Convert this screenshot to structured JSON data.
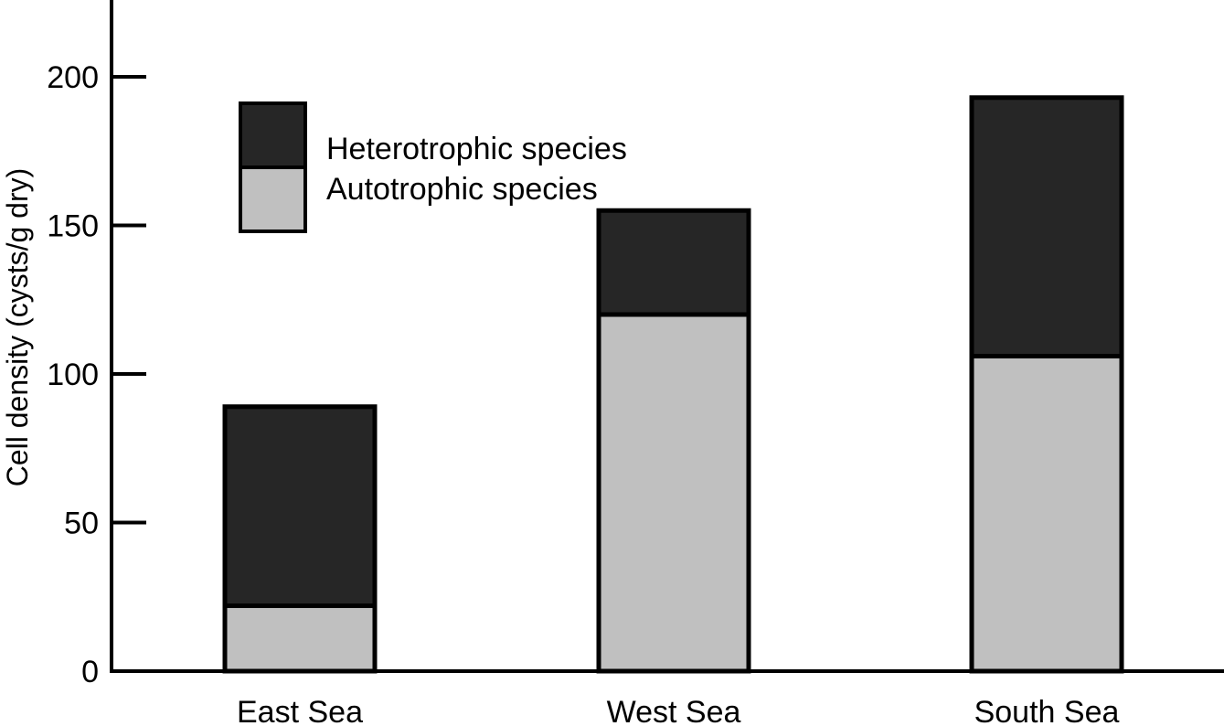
{
  "chart_data": {
    "type": "bar",
    "stacked": true,
    "title": "",
    "xlabel": "",
    "ylabel": "Cell density (cysts/g dry)",
    "ylim": [
      0,
      225
    ],
    "yticks": [
      0,
      50,
      100,
      150,
      200
    ],
    "categories": [
      "East Sea",
      "West Sea",
      "South Sea"
    ],
    "series": [
      {
        "name": "Autotrophic species",
        "values": [
          22,
          120,
          106
        ],
        "color": "#c0c0c0"
      },
      {
        "name": "Heterotrophic species",
        "values": [
          67,
          35,
          87
        ],
        "color": "#262626"
      }
    ],
    "legend": {
      "placement": "top-left",
      "items": [
        {
          "label": "Heterotrophic species",
          "color": "#262626"
        },
        {
          "label": "Autotrophic species",
          "color": "#c0c0c0"
        }
      ]
    },
    "grid": false
  }
}
